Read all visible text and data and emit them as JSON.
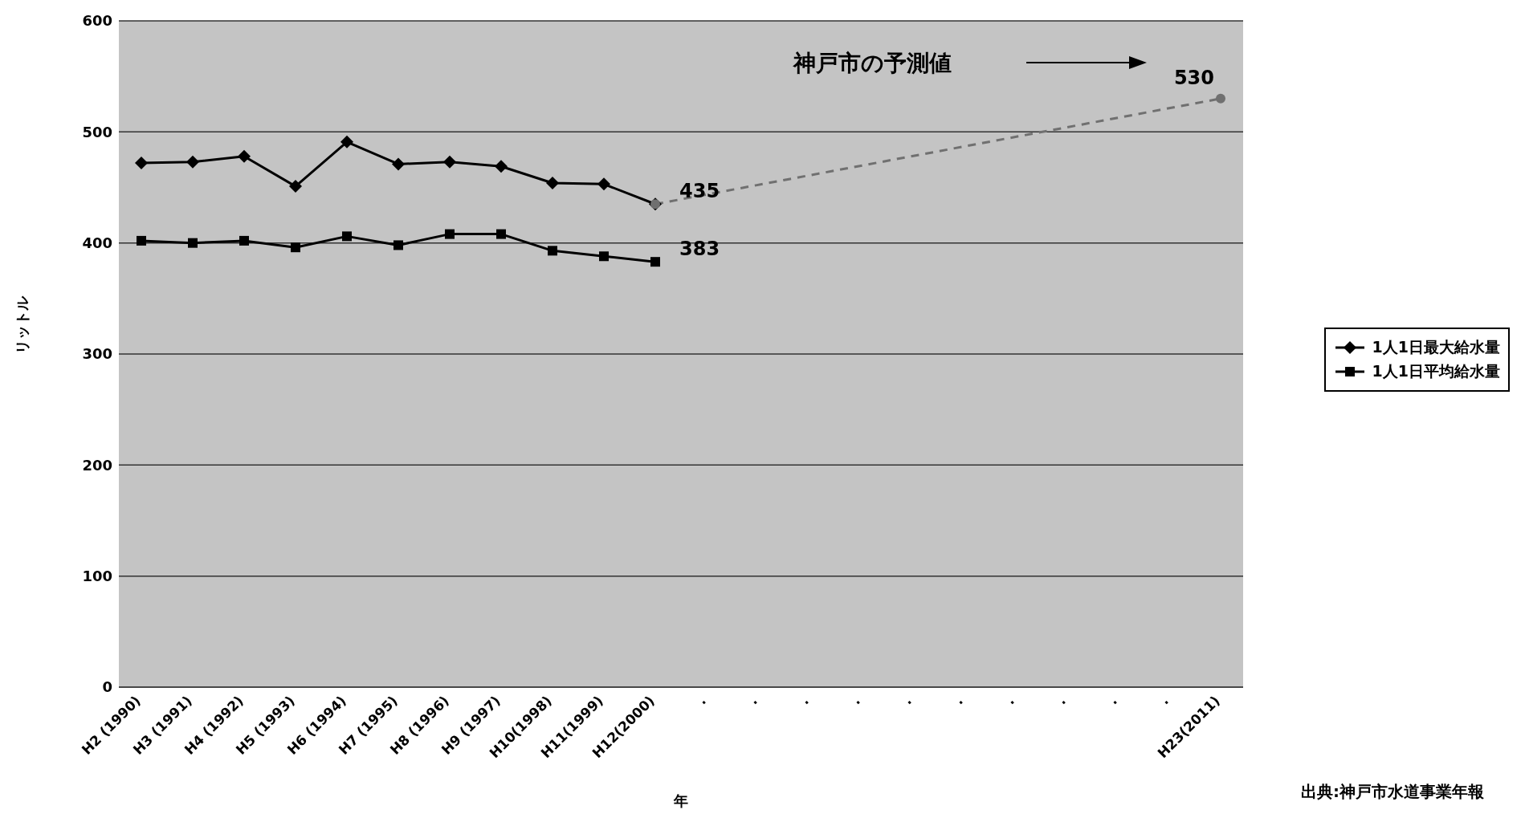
{
  "chart_data": {
    "type": "line",
    "xlabel": "年",
    "ylabel": "リットル",
    "categories": [
      "H2 (1990)",
      "H3 (1991)",
      "H4 (1992)",
      "H5 (1993)",
      "H6 (1994)",
      "H7 (1995)",
      "H8 (1996)",
      "H9 (1997)",
      "H10(1998)",
      "H11(1999)",
      "H12(2000)",
      ".",
      ".",
      ".",
      ".",
      ".",
      ".",
      ".",
      ".",
      ".",
      ".",
      "H23(2011)"
    ],
    "series": [
      {
        "name": "1人1日最大給水量",
        "color": "#000000",
        "marker": "diamond",
        "line_style": "solid",
        "values": [
          472,
          473,
          478,
          451,
          491,
          471,
          473,
          469,
          454,
          453,
          435,
          null,
          null,
          null,
          null,
          null,
          null,
          null,
          null,
          null,
          null,
          null
        ],
        "value_labels": [
          null,
          null,
          null,
          null,
          null,
          null,
          null,
          null,
          null,
          null,
          "435",
          null,
          null,
          null,
          null,
          null,
          null,
          null,
          null,
          null,
          null,
          null
        ]
      },
      {
        "name": "1人1日平均給水量",
        "color": "#000000",
        "marker": "square",
        "line_style": "solid",
        "values": [
          402,
          400,
          402,
          396,
          406,
          398,
          408,
          408,
          393,
          388,
          383,
          null,
          null,
          null,
          null,
          null,
          null,
          null,
          null,
          null,
          null,
          null
        ],
        "value_labels": [
          null,
          null,
          null,
          null,
          null,
          null,
          null,
          null,
          null,
          null,
          "383",
          null,
          null,
          null,
          null,
          null,
          null,
          null,
          null,
          null,
          null,
          null
        ]
      },
      {
        "color": "#707070",
        "marker": "circle",
        "line_style": "dashed",
        "values": [
          null,
          null,
          null,
          null,
          null,
          null,
          null,
          null,
          null,
          null,
          435,
          null,
          null,
          null,
          null,
          null,
          null,
          null,
          null,
          null,
          null,
          530
        ],
        "value_labels": [
          null,
          null,
          null,
          null,
          null,
          null,
          null,
          null,
          null,
          null,
          null,
          null,
          null,
          null,
          null,
          null,
          null,
          null,
          null,
          null,
          null,
          "530"
        ]
      }
    ],
    "ylim": [
      0,
      600
    ],
    "yticks": [
      0,
      100,
      200,
      300,
      400,
      500,
      600
    ],
    "grid": "y",
    "legend": "right",
    "annotations": [
      "神戸市の予測値",
      "出典:神戸市水道事業年報"
    ]
  }
}
